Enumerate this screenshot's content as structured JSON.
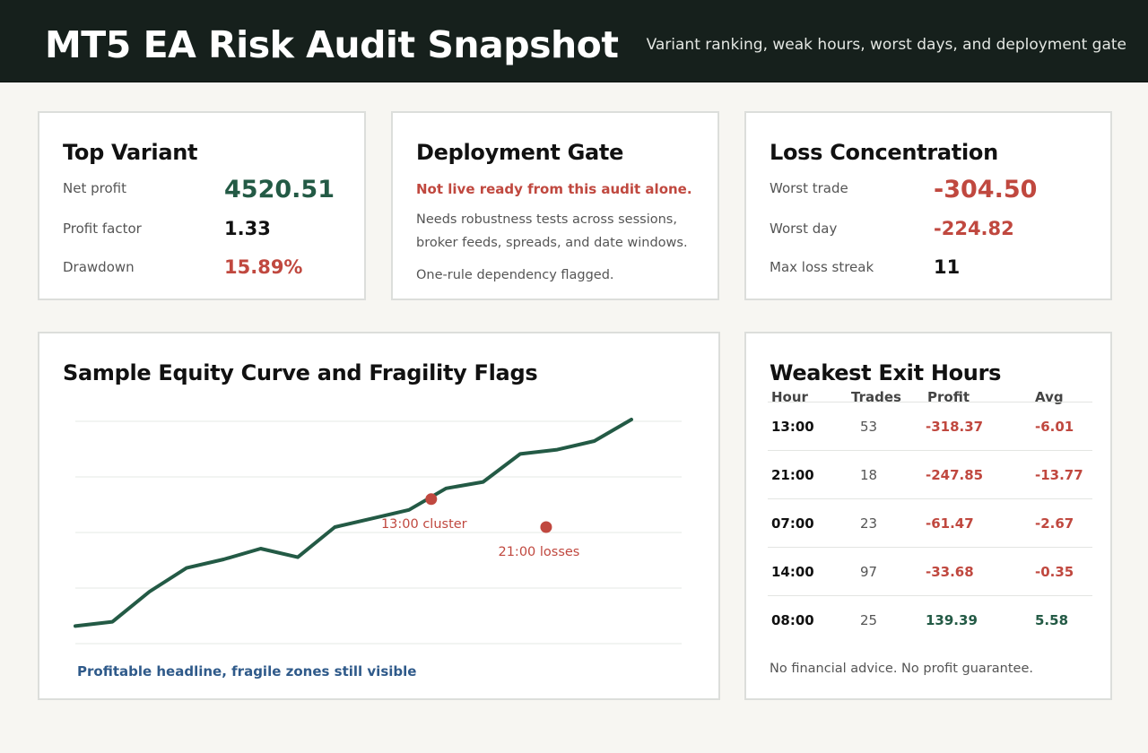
{
  "header": {
    "title": "MT5 EA Risk Audit Snapshot",
    "subtitle": "Variant ranking, weak hours, worst days, and deployment gate"
  },
  "top_variant": {
    "title": "Top Variant",
    "rows": [
      {
        "label": "Net profit",
        "value": "4520.51"
      },
      {
        "label": "Profit factor",
        "value": "1.33"
      },
      {
        "label": "Drawdown",
        "value": "15.89%"
      }
    ]
  },
  "deployment_gate": {
    "title": "Deployment Gate",
    "alert": "Not live ready from this audit alone.",
    "line1": "Needs robustness tests across sessions,",
    "line2": "broker feeds, spreads, and date windows.",
    "line3": "One-rule dependency flagged."
  },
  "loss_concentration": {
    "title": "Loss Concentration",
    "rows": [
      {
        "label": "Worst trade",
        "value": "-304.50"
      },
      {
        "label": "Worst day",
        "value": "-224.82"
      },
      {
        "label": "Max loss streak",
        "value": "11"
      }
    ]
  },
  "equity": {
    "title": "Sample Equity Curve and Fragility Flags",
    "caption": "Profitable headline, fragile zones still visible",
    "flags": [
      {
        "label": "13:00 cluster"
      },
      {
        "label": "21:00 losses"
      }
    ]
  },
  "chart_data": {
    "type": "line",
    "title": "Sample Equity Curve and Fragility Flags",
    "xlabel": "",
    "ylabel": "",
    "ylim": [
      0,
      100
    ],
    "grid": true,
    "x": [
      0,
      1,
      2,
      3,
      4,
      5,
      6,
      7,
      8,
      9,
      10,
      11,
      12,
      13,
      14,
      15
    ],
    "series": [
      {
        "values": [
          4,
          6,
          20,
          31,
          35,
          40,
          36,
          50,
          54,
          58,
          68,
          71,
          84,
          86,
          90,
          100
        ]
      }
    ],
    "annotations": [
      {
        "label": "13:00 cluster",
        "x": 9.6,
        "y": 63
      },
      {
        "label": "21:00 losses",
        "x": 12.7,
        "y": 50
      }
    ],
    "colors": {
      "line": "#235a45",
      "flag": "#c0483f",
      "grid": "#e6e8e5"
    }
  },
  "weak_hours": {
    "title": "Weakest Exit Hours",
    "columns": [
      "Hour",
      "Trades",
      "Profit",
      "Avg"
    ],
    "rows": [
      {
        "hour": "13:00",
        "trades": "53",
        "profit": "-318.37",
        "avg": "-6.01"
      },
      {
        "hour": "21:00",
        "trades": "18",
        "profit": "-247.85",
        "avg": "-13.77"
      },
      {
        "hour": "07:00",
        "trades": "23",
        "profit": "-61.47",
        "avg": "-2.67"
      },
      {
        "hour": "14:00",
        "trades": "97",
        "profit": "-33.68",
        "avg": "-0.35"
      },
      {
        "hour": "08:00",
        "trades": "25",
        "profit": "139.39",
        "avg": "5.58"
      }
    ],
    "disclaimer": "No financial advice. No profit guarantee."
  },
  "colors": {
    "negative": "#c0483f",
    "positive": "#235a45",
    "header_bg": "#16201c",
    "page_bg": "#f7f6f2"
  }
}
